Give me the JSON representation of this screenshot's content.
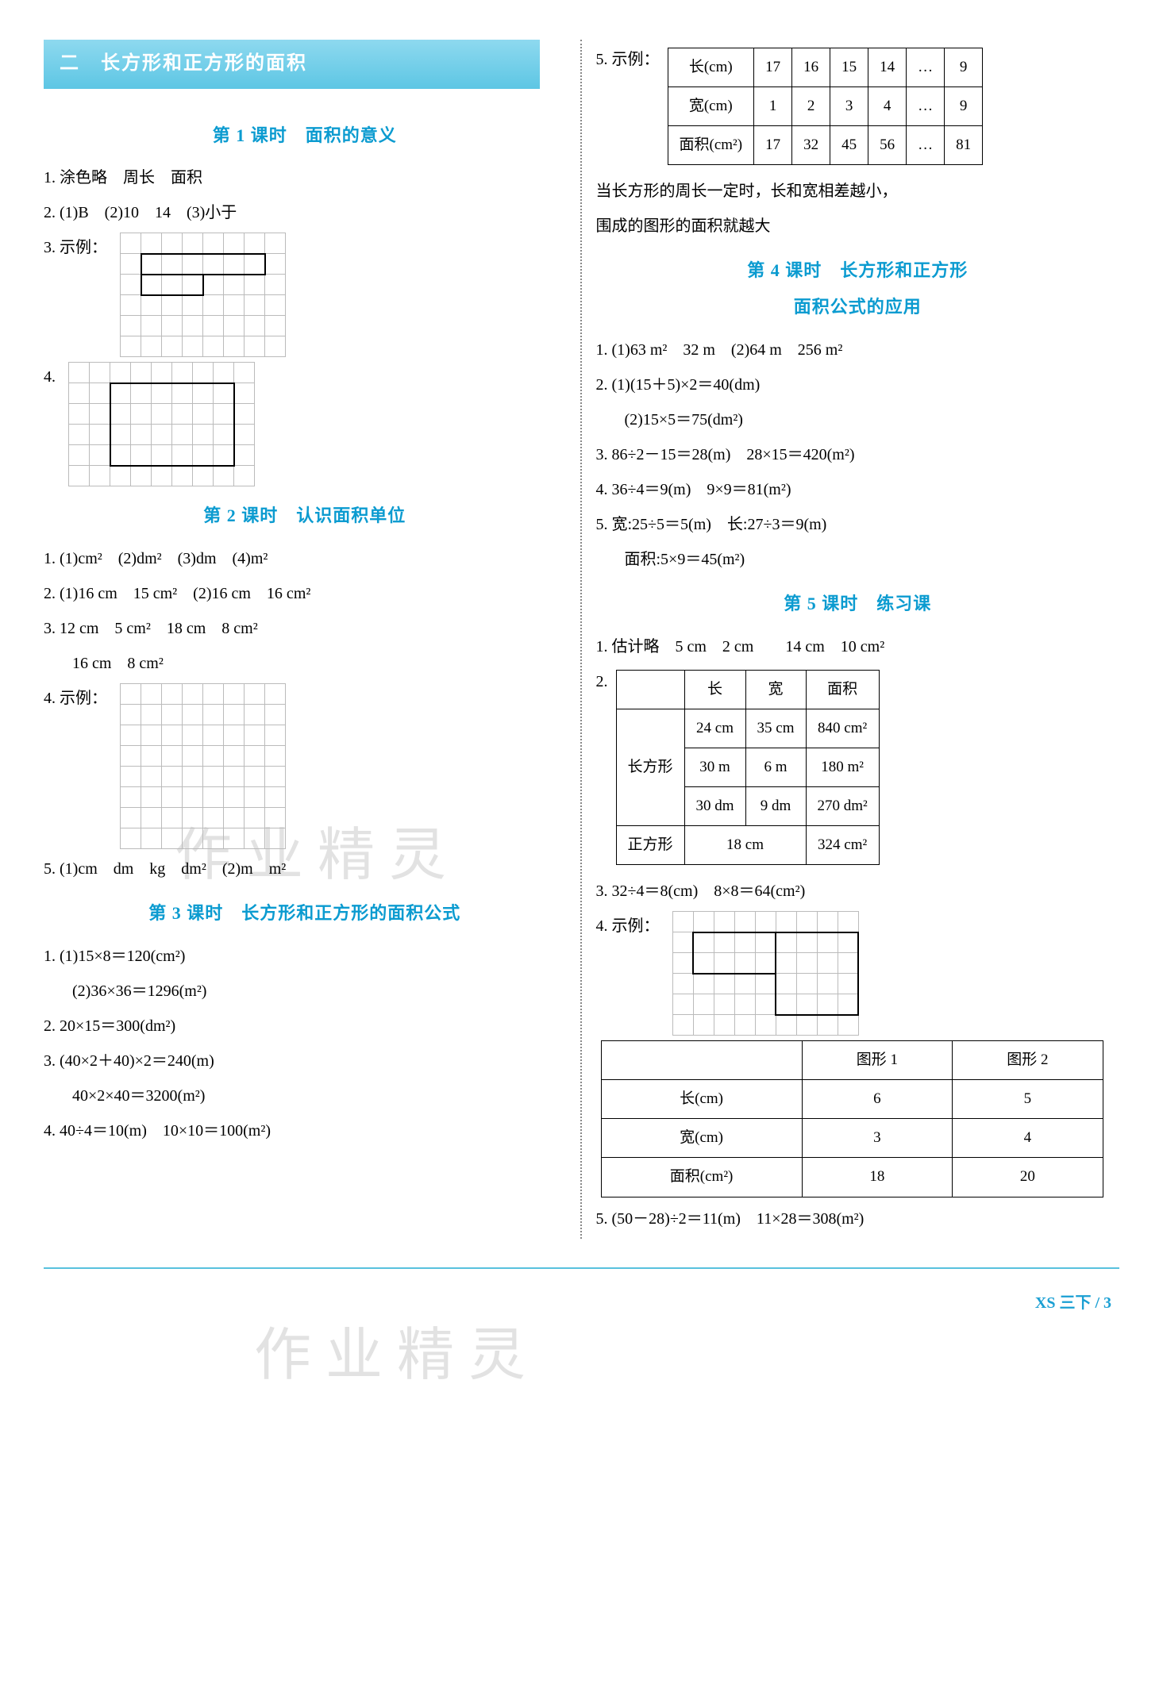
{
  "colors": {
    "accent": "#0b9bd0",
    "banner_bg": "#5dc6e4",
    "grid_line": "#bbbbbb",
    "table_border": "#000000",
    "watermark": "#d0d0d0"
  },
  "watermark_text": "作业精灵",
  "footer": "XS 三下 / 3",
  "chapter_banner": "二　长方形和正方形的面积",
  "left": {
    "lesson1": {
      "title": "第 1 课时　面积的意义",
      "q1": "1. 涂色略　周长　面积",
      "q2": "2. (1)B　(2)10　14　(3)小于",
      "q3_label": "3. 示例：",
      "q4_label": "4.",
      "grid3": {
        "cols": 8,
        "rows": 6,
        "rects": [
          [
            1,
            1,
            6,
            1
          ],
          [
            1,
            2,
            3,
            2
          ]
        ]
      },
      "grid4": {
        "cols": 9,
        "rows": 6,
        "rects": [
          [
            2,
            1,
            7,
            4
          ]
        ]
      }
    },
    "lesson2": {
      "title": "第 2 课时　认识面积单位",
      "q1": "1. (1)cm²　(2)dm²　(3)dm　(4)m²",
      "q2": "2. (1)16 cm　15 cm²　(2)16 cm　16 cm²",
      "q3_a": "3. 12 cm　5 cm²　18 cm　8 cm²",
      "q3_b": "16 cm　8 cm²",
      "q4_label": "4. 示例：",
      "grid4": {
        "cols": 8,
        "rows": 8
      },
      "q5": "5. (1)cm　dm　kg　dm²　(2)m　m²"
    },
    "lesson3": {
      "title": "第 3 课时　长方形和正方形的面积公式",
      "q1a": "1. (1)15×8＝120(cm²)",
      "q1b": "(2)36×36＝1296(m²)",
      "q2": "2. 20×15＝300(dm²)",
      "q3a": "3. (40×2＋40)×2＝240(m)",
      "q3b": "40×2×40＝3200(m²)",
      "q4": "4. 40÷4＝10(m)　10×10＝100(m²)"
    }
  },
  "right": {
    "q5_label": "5. 示例：",
    "table5": {
      "rows": [
        [
          "长(cm)",
          "17",
          "16",
          "15",
          "14",
          "…",
          "9"
        ],
        [
          "宽(cm)",
          "1",
          "2",
          "3",
          "4",
          "…",
          "9"
        ],
        [
          "面积(cm²)",
          "17",
          "32",
          "45",
          "56",
          "…",
          "81"
        ]
      ]
    },
    "q5_note1": "当长方形的周长一定时，长和宽相差越小，",
    "q5_note2": "围成的图形的面积就越大",
    "lesson4": {
      "title1": "第 4 课时　长方形和正方形",
      "title2": "面积公式的应用",
      "q1": "1. (1)63 m²　32 m　(2)64 m　256 m²",
      "q2a": "2. (1)(15＋5)×2＝40(dm)",
      "q2b": "(2)15×5＝75(dm²)",
      "q3": "3. 86÷2－15＝28(m)　28×15＝420(m²)",
      "q4": "4. 36÷4＝9(m)　9×9＝81(m²)",
      "q5a": "5. 宽:25÷5＝5(m)　长:27÷3＝9(m)",
      "q5b": "面积:5×9＝45(m²)"
    },
    "lesson5": {
      "title": "第 5 课时　练习课",
      "q1": "1. 估计略　5 cm　2 cm　　14 cm　10 cm²",
      "q2_label": "2.",
      "table2": {
        "header": [
          "",
          "长",
          "宽",
          "面积"
        ],
        "rowspan_label": "长方形",
        "rows": [
          [
            "24 cm",
            "35 cm",
            "840 cm²"
          ],
          [
            "30 m",
            "6 m",
            "180 m²"
          ],
          [
            "30 dm",
            "9 dm",
            "270 dm²"
          ]
        ],
        "square_row": [
          "正方形",
          "18 cm",
          "324 cm²"
        ]
      },
      "q3": "3. 32÷4＝8(cm)　8×8＝64(cm²)",
      "q4_label": "4. 示例：",
      "grid4": {
        "cols": 9,
        "rows": 6,
        "rects": [
          [
            1,
            1,
            4,
            2
          ],
          [
            5,
            1,
            8,
            4
          ]
        ]
      },
      "table4": {
        "rows": [
          [
            "",
            "图形 1",
            "图形 2"
          ],
          [
            "长(cm)",
            "6",
            "5"
          ],
          [
            "宽(cm)",
            "3",
            "4"
          ],
          [
            "面积(cm²)",
            "18",
            "20"
          ]
        ]
      },
      "q5": "5. (50－28)÷2＝11(m)　11×28＝308(m²)"
    }
  }
}
